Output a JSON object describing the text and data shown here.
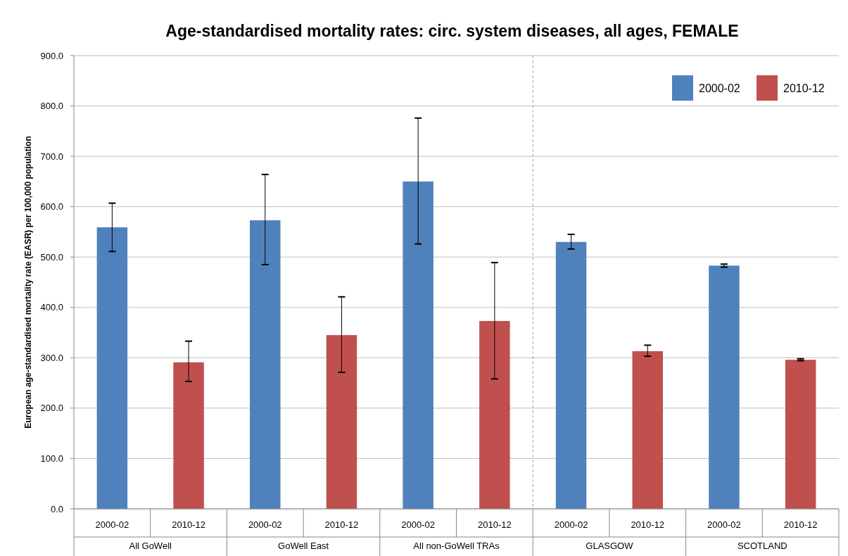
{
  "chart_data": {
    "type": "bar",
    "title": "Age-standardised mortality rates: circ. system diseases, all ages, FEMALE",
    "ylabel": "European age-standardised mortality rate (EASR) per 100,000 population",
    "categories": [
      "All GoWell",
      "GoWell East",
      "All non-GoWell TRAs",
      "GLASGOW",
      "SCOTLAND"
    ],
    "series": [
      {
        "name": "2000-02",
        "color": "#4f81bd",
        "values": [
          559,
          573,
          650,
          530,
          483
        ],
        "errors": [
          [
            511,
            607
          ],
          [
            485,
            664
          ],
          [
            526,
            776
          ],
          [
            516,
            545
          ],
          [
            480,
            486
          ]
        ]
      },
      {
        "name": "2010-12",
        "color": "#c0504d",
        "values": [
          291,
          345,
          373,
          313,
          296
        ],
        "errors": [
          [
            253,
            333
          ],
          [
            271,
            421
          ],
          [
            258,
            489
          ],
          [
            303,
            325
          ],
          [
            294,
            298
          ]
        ]
      }
    ],
    "ylim": [
      0,
      900
    ],
    "yticks": [
      {
        "value": 0,
        "label": "0.0"
      },
      {
        "value": 100,
        "label": "100.0"
      },
      {
        "value": 200,
        "label": "200.0"
      },
      {
        "value": 300,
        "label": "300.0"
      },
      {
        "value": 400,
        "label": "400.0"
      },
      {
        "value": 500,
        "label": "500.0"
      },
      {
        "value": 600,
        "label": "600.0"
      },
      {
        "value": 700,
        "label": "700.0"
      },
      {
        "value": 800,
        "label": "800.0"
      },
      {
        "value": 900,
        "label": "900.0"
      }
    ],
    "grid": "y",
    "legend": "top right",
    "ref_lines": [
      {
        "axis": "x",
        "value": "GLASGOW",
        "color": "#a6a6a6",
        "line_style": "dashed"
      }
    ]
  }
}
